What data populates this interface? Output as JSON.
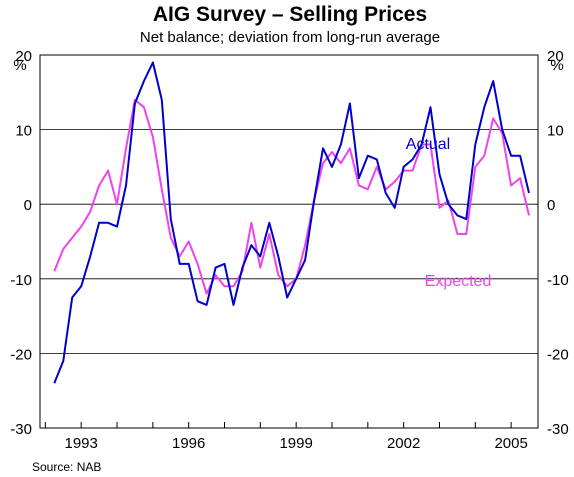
{
  "chart_data": {
    "type": "line",
    "title": "AIG Survey – Selling Prices",
    "subtitle": "Net balance; deviation from long-run average",
    "ylabel_left": "%",
    "ylabel_right": "%",
    "source": "Source: NAB",
    "ylim": [
      -30,
      20
    ],
    "yticks": [
      20,
      10,
      0,
      -10,
      -20,
      -30
    ],
    "xlim": [
      1991.85,
      2005.75
    ],
    "xticks": [
      1993,
      1996,
      1999,
      2002,
      2005
    ],
    "grid": true,
    "series": [
      {
        "name": "Actual",
        "color": "#0000cc",
        "x": [
          1992.25,
          1992.5,
          1992.75,
          1993.0,
          1993.25,
          1993.5,
          1993.75,
          1994.0,
          1994.25,
          1994.5,
          1994.75,
          1995.0,
          1995.25,
          1995.5,
          1995.75,
          1996.0,
          1996.25,
          1996.5,
          1996.75,
          1997.0,
          1997.25,
          1997.5,
          1997.75,
          1998.0,
          1998.25,
          1998.5,
          1998.75,
          1999.0,
          1999.25,
          1999.5,
          1999.75,
          2000.0,
          2000.25,
          2000.5,
          2000.75,
          2001.0,
          2001.25,
          2001.5,
          2001.75,
          2002.0,
          2002.25,
          2002.5,
          2002.75,
          2003.0,
          2003.25,
          2003.5,
          2003.75,
          2004.0,
          2004.25,
          2004.5,
          2004.75,
          2005.0,
          2005.25,
          2005.5
        ],
        "values": [
          -24,
          -21,
          -12.5,
          -11,
          -7,
          -2.5,
          -2.5,
          -3,
          2.5,
          13.5,
          16.5,
          19,
          14,
          -2,
          -8,
          -8,
          -13,
          -13.5,
          -8.5,
          -8,
          -13.5,
          -8.5,
          -5.5,
          -7,
          -2.5,
          -7,
          -12.5,
          -10,
          -7.5,
          0.5,
          7.5,
          5,
          8,
          13.5,
          3.5,
          6.5,
          6,
          1.5,
          -0.5,
          5,
          6,
          8,
          13,
          4,
          0,
          -1.5,
          -2,
          8,
          13,
          16.5,
          10,
          6.5,
          6.5,
          1.5
        ]
      },
      {
        "name": "Expected",
        "color": "#ee44ee",
        "x": [
          1992.25,
          1992.5,
          1992.75,
          1993.0,
          1993.25,
          1993.5,
          1993.75,
          1994.0,
          1994.25,
          1994.5,
          1994.75,
          1995.0,
          1995.25,
          1995.5,
          1995.75,
          1996.0,
          1996.25,
          1996.5,
          1996.75,
          1997.0,
          1997.25,
          1997.5,
          1997.75,
          1998.0,
          1998.25,
          1998.5,
          1998.75,
          1999.0,
          1999.25,
          1999.5,
          1999.75,
          2000.0,
          2000.25,
          2000.5,
          2000.75,
          2001.0,
          2001.25,
          2001.5,
          2001.75,
          2002.0,
          2002.25,
          2002.5,
          2002.75,
          2003.0,
          2003.25,
          2003.5,
          2003.75,
          2004.0,
          2004.25,
          2004.5,
          2004.75,
          2005.0,
          2005.25,
          2005.5
        ],
        "values": [
          -9,
          -6,
          -4.5,
          -3,
          -1,
          2.5,
          4.5,
          0,
          7.5,
          14,
          13,
          9,
          2,
          -4.5,
          -7,
          -5,
          -8,
          -12,
          -9.5,
          -11,
          -11,
          -9,
          -2.5,
          -8.5,
          -4,
          -9.5,
          -11,
          -10,
          -5.5,
          0.5,
          5.5,
          7,
          5.5,
          7.5,
          2.5,
          2,
          5,
          2,
          3,
          4.5,
          4.5,
          8,
          8,
          -0.5,
          0.5,
          -4,
          -4,
          5,
          6.5,
          11.5,
          9.5,
          2.5,
          3.5,
          -1.5
        ]
      }
    ],
    "annotations": [
      "Actual",
      "Expected"
    ]
  }
}
